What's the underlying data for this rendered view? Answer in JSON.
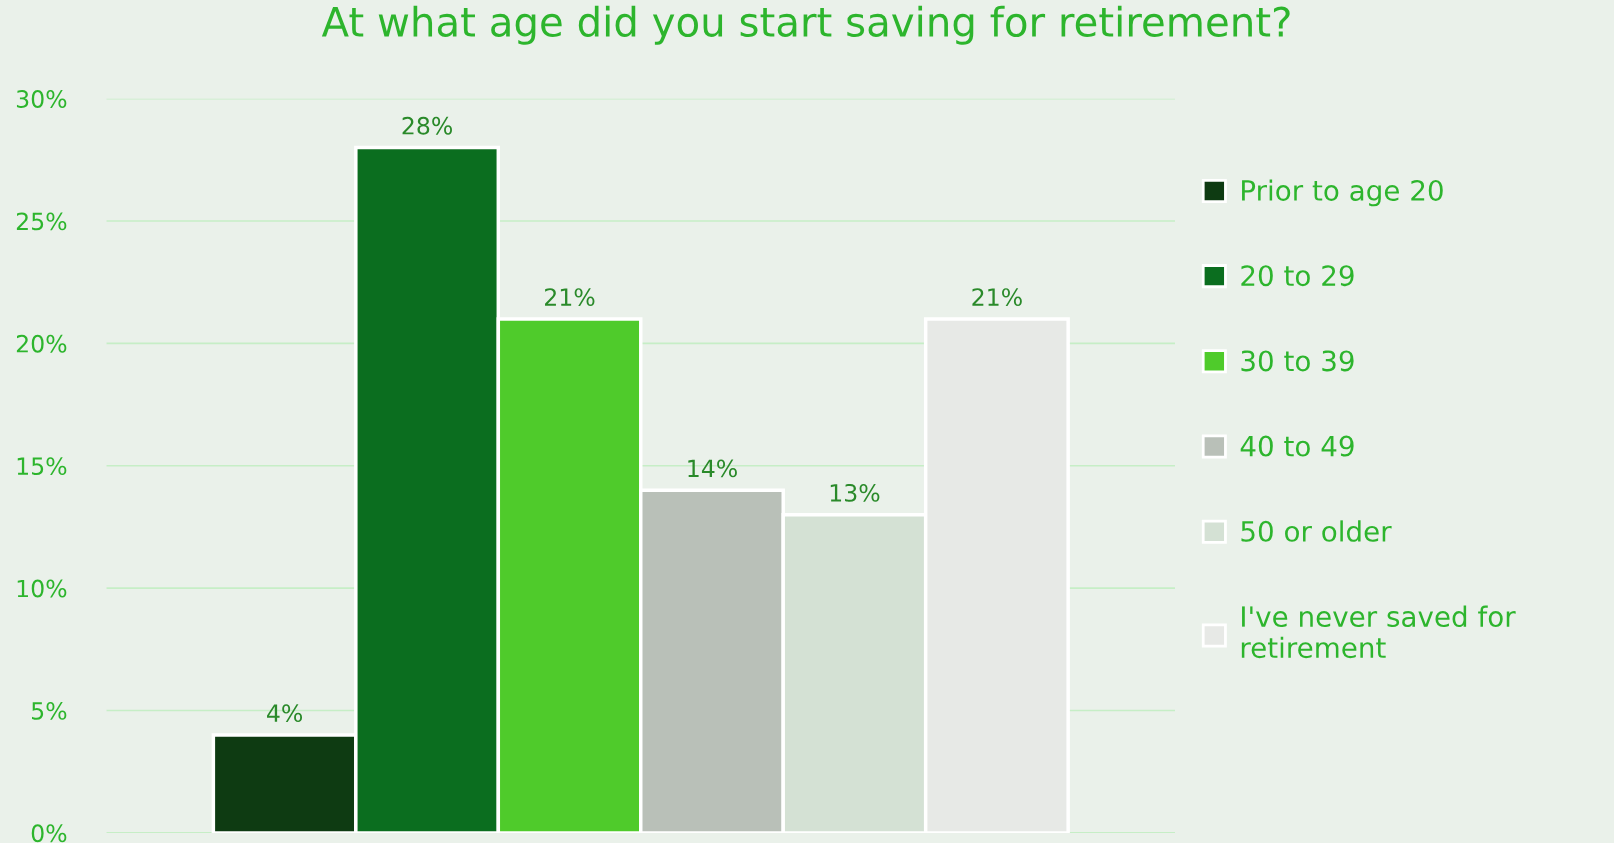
{
  "chart_data": {
    "type": "bar",
    "title": "At what age did you start saving for retirement?",
    "categories": [
      null
    ],
    "series": [
      {
        "name": "Prior to age 20",
        "color": "#0e3b12",
        "values": [
          4
        ],
        "value_labels": [
          "4%"
        ]
      },
      {
        "name": "20 to 29",
        "color": "#0b6e1f",
        "values": [
          28
        ],
        "value_labels": [
          "28%"
        ]
      },
      {
        "name": "30 to 39",
        "color": "#4fcb2b",
        "values": [
          21
        ],
        "value_labels": [
          "21%"
        ]
      },
      {
        "name": "40 to 49",
        "color": "#b9c0b8",
        "values": [
          14
        ],
        "value_labels": [
          "14%"
        ]
      },
      {
        "name": "50 or older",
        "color": "#d4e1d4",
        "values": [
          13
        ],
        "value_labels": [
          "13%"
        ]
      },
      {
        "name": "I've never saved for retirement",
        "color": "#e7e9e6",
        "values": [
          21
        ],
        "value_labels": [
          "21%"
        ]
      }
    ],
    "ylim": [
      0,
      30
    ],
    "yticks": [
      {
        "value": 0,
        "label": "0%"
      },
      {
        "value": 5,
        "label": "5%"
      },
      {
        "value": 10,
        "label": "10%"
      },
      {
        "value": 15,
        "label": "15%"
      },
      {
        "value": 20,
        "label": "20%"
      },
      {
        "value": 25,
        "label": "25%"
      },
      {
        "value": 30,
        "label": "30%"
      }
    ],
    "grid": "y",
    "legend": "right"
  }
}
